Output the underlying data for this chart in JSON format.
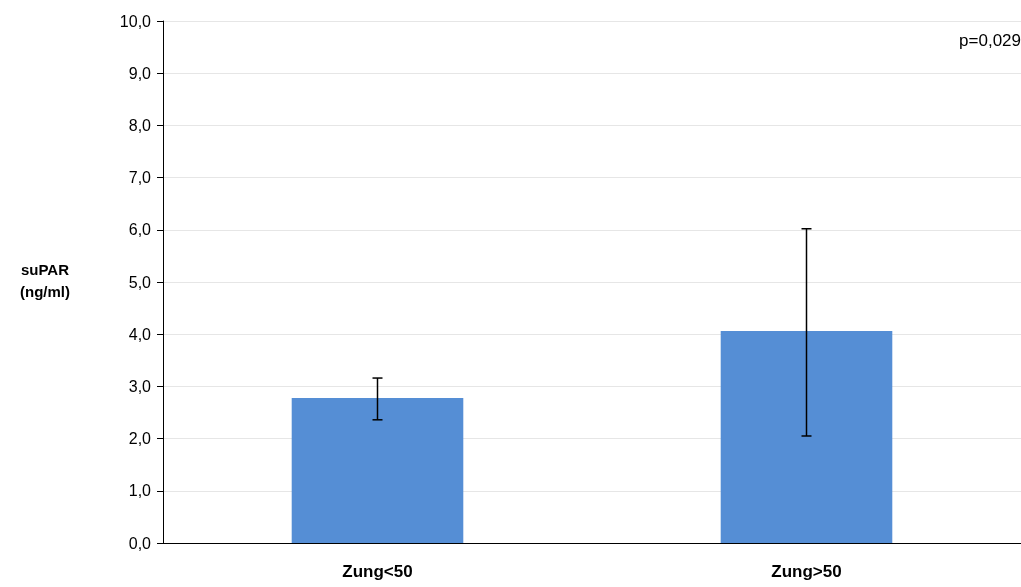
{
  "chart_data": {
    "type": "bar",
    "ylabel": "suPAR\n(ng/ml)",
    "categories": [
      "Zung<50",
      "Zung>50"
    ],
    "values": [
      2.78,
      4.06
    ],
    "color": "#558ed5",
    "errors": [
      [
        2.36,
        3.16
      ],
      [
        2.05,
        6.02
      ]
    ],
    "ylim": [
      0,
      10
    ],
    "yticks": [
      {
        "value": 0,
        "label": "0,0"
      },
      {
        "value": 1,
        "label": "1,0"
      },
      {
        "value": 2,
        "label": "2,0"
      },
      {
        "value": 3,
        "label": "3,0"
      },
      {
        "value": 4,
        "label": "4,0"
      },
      {
        "value": 5,
        "label": "5,0"
      },
      {
        "value": 6,
        "label": "6,0"
      },
      {
        "value": 7,
        "label": "7,0"
      },
      {
        "value": 8,
        "label": "8,0"
      },
      {
        "value": 9,
        "label": "9,0"
      },
      {
        "value": 10,
        "label": "10,0"
      }
    ],
    "grid": "y",
    "annotations": [
      "p=0,029"
    ]
  }
}
